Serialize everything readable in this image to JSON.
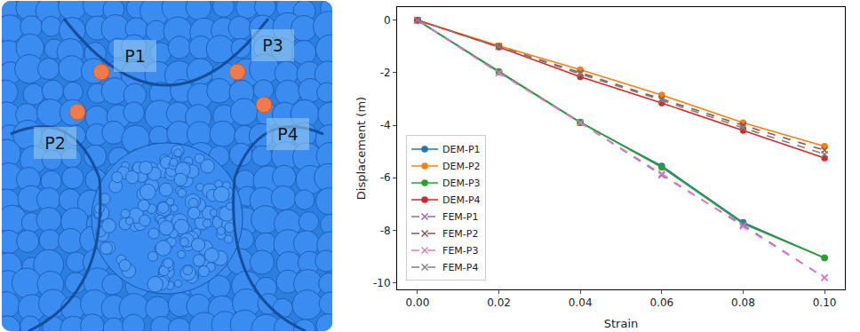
{
  "chart_data": {
    "type": "line",
    "x": [
      0,
      0.02,
      0.04,
      0.06,
      0.08,
      0.1
    ],
    "x_label": "Strain",
    "y_label": "Displacement (m)",
    "xlim": [
      -0.005,
      0.105
    ],
    "xticks": [
      {
        "value": 0,
        "label": "0.00"
      },
      0.02,
      0.04,
      0.06,
      0.08,
      {
        "value": 0.1,
        "label": "0.10"
      }
    ],
    "ylim": [
      -10.25,
      0.5
    ],
    "yticks": [
      0,
      -2,
      -4,
      -6,
      -8,
      -10
    ],
    "grid": false,
    "legend": "lower left",
    "series": [
      {
        "name": "DEM-P1",
        "color": "#1f77b4",
        "marker": "circle",
        "line_style": "solid",
        "values": [
          0,
          -1.97,
          -3.9,
          -5.55,
          -7.7,
          -9.05
        ]
      },
      {
        "name": "DEM-P2",
        "color": "#ff7f0e",
        "marker": "circle",
        "line_style": "solid",
        "values": [
          0,
          -0.97,
          -1.88,
          -2.85,
          -3.9,
          -4.8
        ]
      },
      {
        "name": "DEM-P3",
        "color": "#2ca02c",
        "marker": "circle",
        "line_style": "solid",
        "values": [
          0,
          -1.95,
          -3.88,
          -5.6,
          -7.75,
          -9.05
        ]
      },
      {
        "name": "DEM-P4",
        "color": "#d62728",
        "marker": "circle",
        "line_style": "solid",
        "values": [
          0,
          -1.02,
          -2.15,
          -3.15,
          -4.2,
          -5.25
        ]
      },
      {
        "name": "FEM-P1",
        "color": "#9467bd",
        "marker": "x",
        "line_style": "dashed",
        "values": [
          0,
          -2.0,
          -3.9,
          -5.9,
          -7.8,
          -9.8
        ]
      },
      {
        "name": "FEM-P2",
        "color": "#8c564b",
        "marker": "x",
        "line_style": "dashed",
        "values": [
          0,
          -1.0,
          -2.0,
          -3.0,
          -4.0,
          -4.95
        ]
      },
      {
        "name": "FEM-P3",
        "color": "#e377c2",
        "marker": "x",
        "line_style": "dashed",
        "values": [
          0,
          -2.0,
          -3.9,
          -5.85,
          -7.85,
          -9.8
        ]
      },
      {
        "name": "FEM-P4",
        "color": "#7f7f7f",
        "marker": "x",
        "line_style": "dashed",
        "values": [
          0,
          -1.0,
          -2.05,
          -3.05,
          -4.1,
          -5.1
        ]
      }
    ]
  },
  "image_labels": [
    "P1",
    "P2",
    "P3",
    "P4"
  ]
}
